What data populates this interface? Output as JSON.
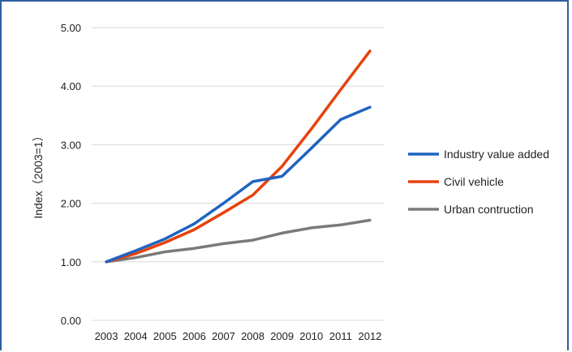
{
  "chart_data": {
    "type": "line",
    "x": [
      "2003",
      "2004",
      "2005",
      "2006",
      "2007",
      "2008",
      "2009",
      "2010",
      "2011",
      "2012"
    ],
    "ylabel": "Index（2003=1）",
    "ylim": [
      0,
      5
    ],
    "yticks": [
      "0.00",
      "1.00",
      "2.00",
      "3.00",
      "4.00",
      "5.00"
    ],
    "grid": true,
    "legend_position": "right",
    "series": [
      {
        "name": "Industry value added",
        "color": "#1f63c0",
        "values": [
          1.0,
          1.19,
          1.39,
          1.65,
          2.0,
          2.37,
          2.46,
          2.94,
          3.43,
          3.64
        ]
      },
      {
        "name": "Civil vehicle",
        "color": "#e8410b",
        "values": [
          1.0,
          1.14,
          1.33,
          1.55,
          1.84,
          2.14,
          2.63,
          3.27,
          3.94,
          4.6
        ]
      },
      {
        "name": "Urban contruction",
        "color": "#7a7a7a",
        "values": [
          1.0,
          1.07,
          1.17,
          1.23,
          1.31,
          1.37,
          1.49,
          1.58,
          1.63,
          1.71
        ]
      }
    ]
  }
}
